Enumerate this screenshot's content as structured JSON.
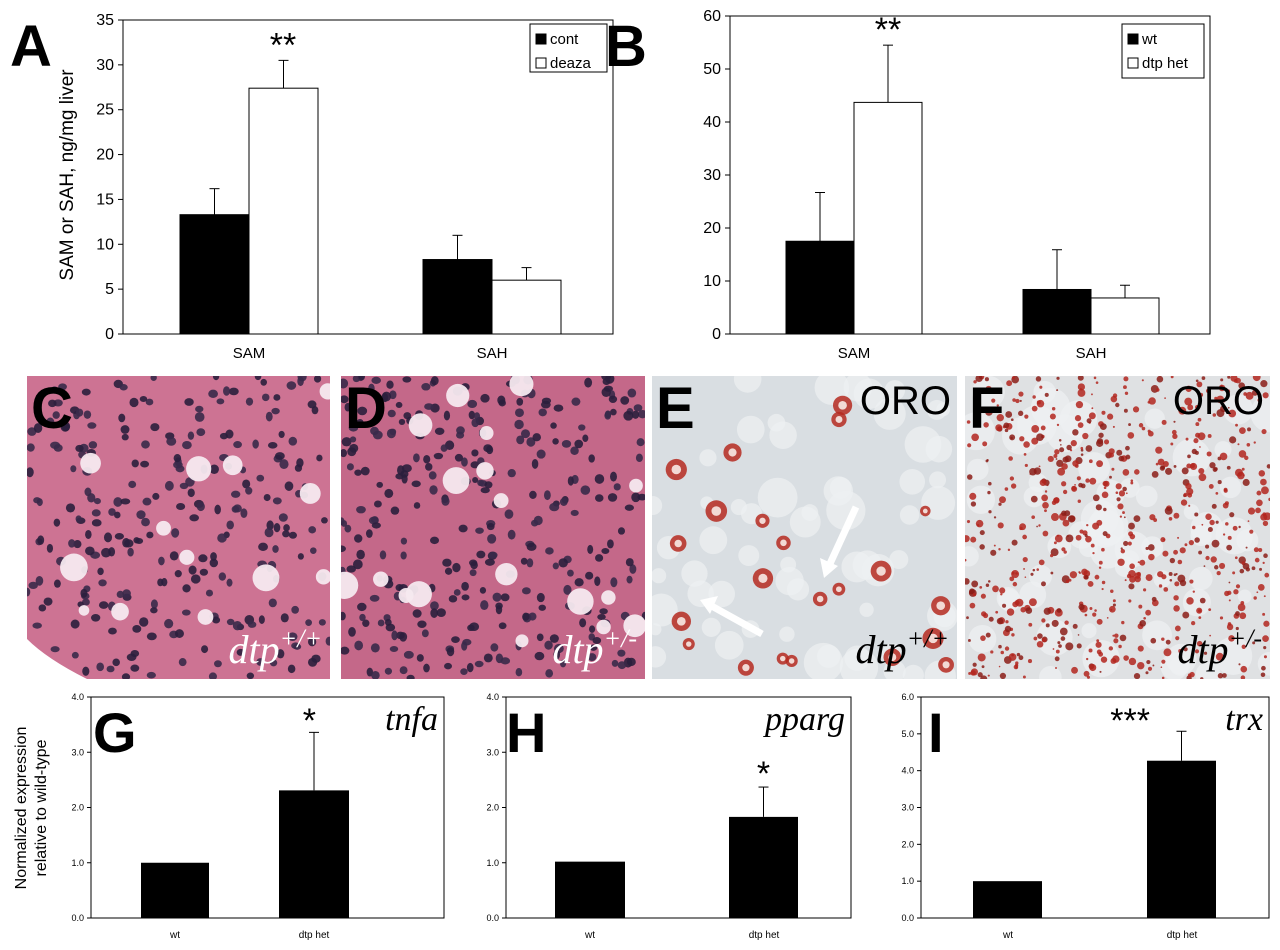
{
  "panels": {
    "A": "A",
    "B": "B",
    "C": "C",
    "D": "D",
    "E": "E",
    "F": "F",
    "G": "G",
    "H": "H",
    "I": "I"
  },
  "ylabel_top": "SAM or SAH, ng/mg liver",
  "ylabel_bottom_line1": "Normalized expression",
  "ylabel_bottom_line2": "relative to wild-type",
  "images": [
    {
      "id": "C",
      "genotype": "dtp",
      "sup": "+/+",
      "stain_label": "",
      "palette": "he"
    },
    {
      "id": "D",
      "genotype": "dtp",
      "sup": "+/-",
      "stain_label": "",
      "palette": "he"
    },
    {
      "id": "E",
      "genotype": "dtp",
      "sup": "+/+",
      "stain_label": "ORO",
      "palette": "oro_light"
    },
    {
      "id": "F",
      "genotype": "dtp",
      "sup": "+/-",
      "stain_label": "ORO",
      "palette": "oro_heavy"
    }
  ],
  "colors": {
    "filled_bar": "#000000",
    "open_bar": "#ffffff",
    "he_bg": "#c9708f",
    "oro_bg": "#d9dde0",
    "oro_drop": "#b3261e"
  },
  "chart_data": [
    {
      "id": "A",
      "type": "bar",
      "categories": [
        "SAM",
        "SAH"
      ],
      "series": [
        {
          "name": "cont",
          "values": [
            13.3,
            8.3
          ],
          "errors": [
            2.9,
            2.7
          ],
          "fill": "#000000"
        },
        {
          "name": "deaza",
          "values": [
            27.4,
            6.0
          ],
          "errors": [
            3.1,
            1.4
          ],
          "fill": "#ffffff"
        }
      ],
      "yticks": [
        "0",
        "5",
        "10",
        "15",
        "20",
        "25",
        "30",
        "35"
      ],
      "ylim": [
        0,
        35
      ],
      "annotations": [
        {
          "text": "**",
          "category": "SAM"
        }
      ],
      "legend": "top-right"
    },
    {
      "id": "B",
      "type": "bar",
      "categories": [
        "SAM",
        "SAH"
      ],
      "series": [
        {
          "name": "wt",
          "values": [
            17.5,
            8.4
          ],
          "errors": [
            9.2,
            7.5
          ],
          "fill": "#000000"
        },
        {
          "name": "dtp het",
          "values": [
            43.7,
            6.8
          ],
          "errors": [
            10.8,
            2.4
          ],
          "fill": "#ffffff"
        }
      ],
      "yticks": [
        "0",
        "10",
        "20",
        "30",
        "40",
        "50",
        "60"
      ],
      "ylim": [
        0,
        60
      ],
      "annotations": [
        {
          "text": "**",
          "category": "SAM"
        }
      ],
      "legend": "top-right"
    },
    {
      "id": "G",
      "type": "bar",
      "categories": [
        "wt",
        "dtp het"
      ],
      "values": [
        1.0,
        2.31
      ],
      "errors": [
        0,
        1.05
      ],
      "yticks": [
        "0.0",
        "1.0",
        "2.0",
        "3.0",
        "4.0"
      ],
      "ylim": [
        0,
        4.0
      ],
      "stars": "*",
      "gene": "tnfa"
    },
    {
      "id": "H",
      "type": "bar",
      "categories": [
        "wt",
        "dtp het"
      ],
      "values": [
        1.02,
        1.83
      ],
      "errors": [
        0,
        0.54
      ],
      "yticks": [
        "0.0",
        "1.0",
        "2.0",
        "3.0",
        "4.0"
      ],
      "ylim": [
        0,
        4.0
      ],
      "stars": "*",
      "gene": "pparg"
    },
    {
      "id": "I",
      "type": "bar",
      "categories": [
        "wt",
        "dtp het"
      ],
      "values": [
        1.0,
        4.27
      ],
      "errors": [
        0,
        0.8
      ],
      "yticks": [
        "0.0",
        "1.0",
        "2.0",
        "3.0",
        "4.0",
        "5.0",
        "6.0"
      ],
      "ylim": [
        0,
        6.0
      ],
      "stars": "***",
      "gene": "trx"
    }
  ]
}
